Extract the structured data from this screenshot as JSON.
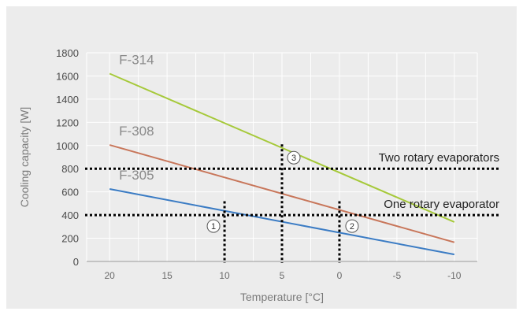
{
  "chart_data": {
    "type": "line",
    "xlabel": "Temperature [°C]",
    "ylabel": "Cooling capacity [W]",
    "xlim": [
      22,
      -12
    ],
    "ylim": [
      0,
      1800
    ],
    "x_ticks": [
      20,
      15,
      10,
      5,
      0,
      -5,
      -10
    ],
    "x_tick_labels": [
      "20",
      "15",
      "10",
      "5",
      "0",
      "-5",
      "-10"
    ],
    "y_ticks": [
      0,
      200,
      400,
      600,
      800,
      1000,
      1200,
      1400,
      1600,
      1800
    ],
    "y_tick_labels": [
      "0",
      "200",
      "400",
      "600",
      "800",
      "1000",
      "1200",
      "1400",
      "1600",
      "1800"
    ],
    "grid": true,
    "series": [
      {
        "name": "F-314",
        "color": "#a6c93a",
        "x": [
          20,
          -10
        ],
        "y": [
          1620,
          340
        ]
      },
      {
        "name": "F-308",
        "color": "#c8765a",
        "x": [
          20,
          -10
        ],
        "y": [
          1005,
          165
        ]
      },
      {
        "name": "F-305",
        "color": "#3b7cc4",
        "x": [
          20,
          -10
        ],
        "y": [
          625,
          60
        ]
      }
    ],
    "reference_lines": [
      {
        "orientation": "horizontal",
        "y": 800,
        "label": "Two rotary evaporators"
      },
      {
        "orientation": "horizontal",
        "y": 400,
        "label": "One rotary evaporator"
      }
    ],
    "markers": [
      {
        "label": "1",
        "x": 10,
        "y_top": 520
      },
      {
        "label": "2",
        "x": 0,
        "y_top": 520
      },
      {
        "label": "3",
        "x": 5,
        "y_top": 1010
      }
    ]
  }
}
